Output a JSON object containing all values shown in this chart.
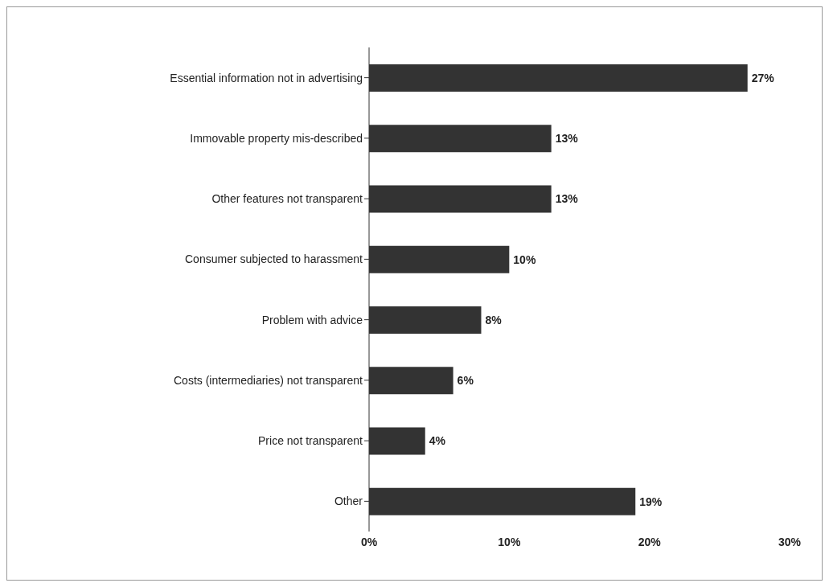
{
  "chart_data": {
    "type": "bar",
    "orientation": "horizontal",
    "categories": [
      "Essential information not in advertising",
      "Immovable property mis-described",
      "Other features not transparent",
      "Consumer subjected to harassment",
      "Problem with advice",
      "Costs (intermediaries) not transparent",
      "Price not transparent",
      "Other"
    ],
    "values": [
      27,
      13,
      13,
      10,
      8,
      6,
      4,
      19
    ],
    "value_labels": [
      "27%",
      "13%",
      "13%",
      "10%",
      "8%",
      "6%",
      "4%",
      "19%"
    ],
    "color": "#333333",
    "xlim": [
      0,
      30
    ],
    "xticks": [
      {
        "value": 0,
        "label": "0%"
      },
      {
        "value": 10,
        "label": "10%"
      },
      {
        "value": 20,
        "label": "20%"
      },
      {
        "value": 30,
        "label": "30%"
      }
    ],
    "grid": false
  }
}
